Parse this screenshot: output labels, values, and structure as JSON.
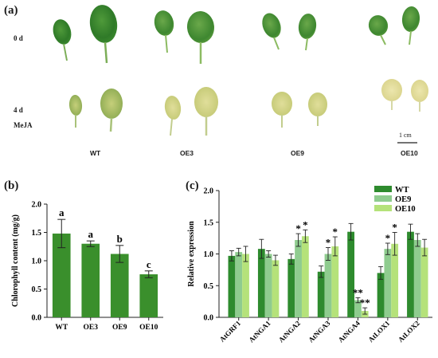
{
  "panel_a": {
    "letter": "(a)",
    "rows": [
      "0 d",
      "4 d",
      "MeJA"
    ],
    "genotypes": [
      "WT",
      "OE3",
      "OE9",
      "OE10"
    ],
    "scale_bar": "1 cm"
  },
  "panel_b": {
    "letter": "(b)"
  },
  "panel_c": {
    "letter": "(c)"
  },
  "chart_data": [
    {
      "type": "bar",
      "panel": "(b)",
      "title": "",
      "xlabel": "",
      "ylabel": "Chlorophyll content (mg/g)",
      "categories": [
        "WT",
        "OE3",
        "OE9",
        "OE10"
      ],
      "values": [
        1.48,
        1.3,
        1.12,
        0.76
      ],
      "errors": [
        0.25,
        0.05,
        0.15,
        0.06
      ],
      "significance": [
        "a",
        "a",
        "b",
        "c"
      ],
      "ylim": [
        0,
        2.0
      ],
      "yticks": [
        "0.0",
        "0.5",
        "1.0",
        "1.5",
        "2.0"
      ],
      "color": "#3a8f2c",
      "grid": false
    },
    {
      "type": "bar",
      "panel": "(c)",
      "title": "",
      "xlabel": "",
      "ylabel": "Relative expression",
      "categories": [
        "AtGRF1",
        "AtNGA1",
        "AtNGA2",
        "AtNGA3",
        "AtNGA4",
        "AtLOX1",
        "AtLOX2"
      ],
      "ylim": [
        0,
        2.0
      ],
      "yticks": [
        "0.0",
        "0.5",
        "1.0",
        "1.5",
        "2.0"
      ],
      "legend_position": "top-right",
      "grid": false,
      "series": [
        {
          "name": "WT",
          "color": "#2e8b2e",
          "values": [
            0.97,
            1.08,
            0.92,
            0.72,
            1.35,
            0.7,
            1.35
          ],
          "errors": [
            0.08,
            0.15,
            0.08,
            0.09,
            0.13,
            0.1,
            0.12
          ],
          "significance": [
            "",
            "",
            "",
            "",
            "",
            "",
            ""
          ]
        },
        {
          "name": "OE9",
          "color": "#8fcc8f",
          "values": [
            1.03,
            1.0,
            1.22,
            1.0,
            0.27,
            1.08,
            1.22
          ],
          "errors": [
            0.06,
            0.05,
            0.1,
            0.1,
            0.04,
            0.09,
            0.1
          ],
          "significance": [
            "",
            "",
            "*",
            "*",
            "**",
            "*",
            ""
          ]
        },
        {
          "name": "OE10",
          "color": "#b5e27a",
          "values": [
            1.0,
            0.9,
            1.28,
            1.12,
            0.1,
            1.16,
            1.1
          ],
          "errors": [
            0.12,
            0.08,
            0.1,
            0.15,
            0.05,
            0.18,
            0.13
          ],
          "significance": [
            "",
            "",
            "*",
            "*",
            "**",
            "*",
            ""
          ]
        }
      ]
    }
  ]
}
